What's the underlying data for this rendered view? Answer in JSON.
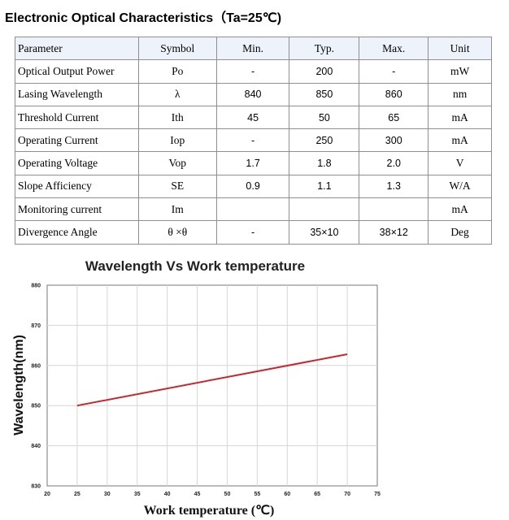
{
  "heading": "Electronic Optical Characteristics（Ta=25℃)",
  "table": {
    "columns": [
      "Parameter",
      "Symbol",
      "Min.",
      "Typ.",
      "Max.",
      "Unit"
    ],
    "rows": [
      {
        "parameter": "Optical Output Power",
        "symbol": "Po",
        "min": "-",
        "typ": "200",
        "max": "-",
        "unit": "mW"
      },
      {
        "parameter": "Lasing Wavelength",
        "symbol": "λ",
        "min": "840",
        "typ": "850",
        "max": "860",
        "unit": "nm"
      },
      {
        "parameter": "Threshold Current",
        "symbol": "Ith",
        "min": "45",
        "typ": "50",
        "max": "65",
        "unit": "mA"
      },
      {
        "parameter": "Operating Current",
        "symbol": "Iop",
        "min": "-",
        "typ": "250",
        "max": "300",
        "unit": "mA"
      },
      {
        "parameter": "Operating Voltage",
        "symbol": "Vop",
        "min": "1.7",
        "typ": "1.8",
        "max": "2.0",
        "unit": "V"
      },
      {
        "parameter": "Slope Afficiency",
        "symbol": "SE",
        "min": "0.9",
        "typ": "1.1",
        "max": "1.3",
        "unit": "W/A"
      },
      {
        "parameter": "Monitoring current",
        "symbol": "Im",
        "min": "",
        "typ": "",
        "max": "",
        "unit": "mA"
      },
      {
        "parameter": "Divergence Angle",
        "symbol": "θ ×θ",
        "min": "-",
        "typ": "35×10",
        "max": "38×12",
        "unit": "Deg"
      }
    ]
  },
  "chart_data": {
    "type": "line",
    "title": "Wavelength Vs Work temperature",
    "xlabel": "Work temperature (℃)",
    "ylabel": "Wavelength(nm)",
    "xlim": [
      20,
      75
    ],
    "ylim": [
      830,
      880
    ],
    "xticks": [
      "20",
      "25",
      "30",
      "35",
      "40",
      "45",
      "50",
      "55",
      "60",
      "65",
      "70",
      "75"
    ],
    "yticks": [
      "830",
      "840",
      "850",
      "860",
      "870",
      "880"
    ],
    "grid": true,
    "series": [
      {
        "x": [
          25,
          70
        ],
        "y": [
          850,
          862.8
        ],
        "color": "#c8262f"
      }
    ]
  }
}
